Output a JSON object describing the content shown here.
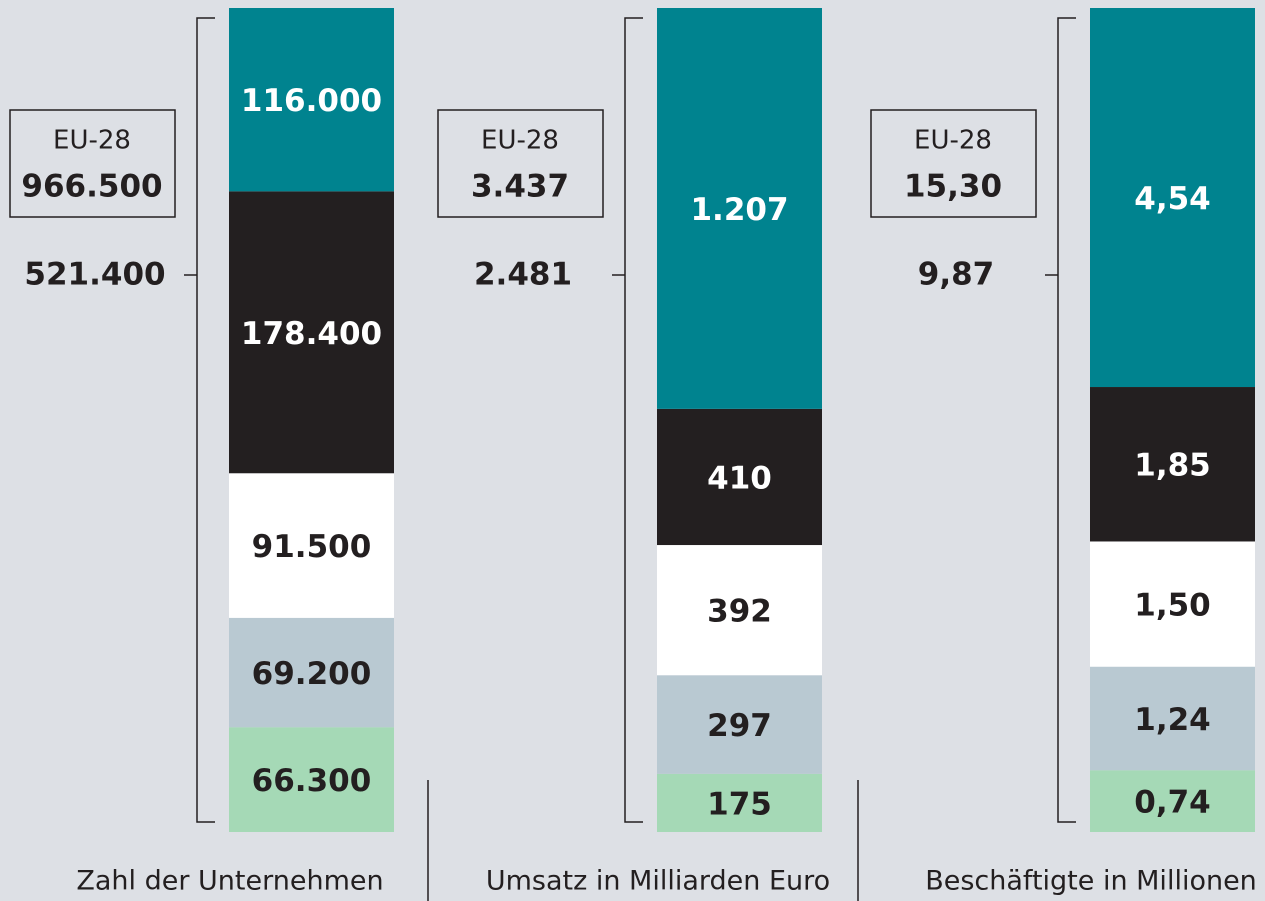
{
  "chart_data": [
    {
      "type": "bar",
      "xlabel": "Zahl der Unternehmen",
      "total": {
        "value": 521400,
        "label": "521.400"
      },
      "eu": {
        "label": "EU-28",
        "value": 966500,
        "value_label": "966.500"
      },
      "ylim": [
        0,
        521400
      ],
      "series": [
        {
          "color": "#a5d9b6",
          "values": [
            66300
          ],
          "value_labels": [
            "66.300"
          ]
        },
        {
          "color": "#b9c9d2",
          "values": [
            69200
          ],
          "value_labels": [
            "69.200"
          ]
        },
        {
          "color": "#ffffff",
          "values": [
            91500
          ],
          "value_labels": [
            "91.500"
          ]
        },
        {
          "color": "#231f20",
          "values": [
            178400
          ],
          "value_labels": [
            "178.400"
          ]
        },
        {
          "color": "#00838f",
          "values": [
            116000
          ],
          "value_labels": [
            "116.000"
          ]
        }
      ]
    },
    {
      "type": "bar",
      "xlabel": "Umsatz in Milliarden Euro",
      "total": {
        "value": 2481,
        "label": "2.481"
      },
      "eu": {
        "label": "EU-28",
        "value": 3437,
        "value_label": "3.437"
      },
      "ylim": [
        0,
        2481
      ],
      "series": [
        {
          "color": "#a5d9b6",
          "values": [
            175
          ]
        },
        {
          "color": "#b9c9d2",
          "values": [
            297
          ]
        },
        {
          "color": "#ffffff",
          "values": [
            392
          ]
        },
        {
          "color": "#231f20",
          "values": [
            410
          ]
        },
        {
          "color": "#00838f",
          "values": [
            1207
          ],
          "value_labels": [
            "1.207"
          ]
        }
      ]
    },
    {
      "type": "bar",
      "xlabel": "Beschäftigte in Millionen",
      "total": {
        "value": 9.87,
        "label": "9,87"
      },
      "eu": {
        "label": "EU-28",
        "value": 15.3,
        "value_label": "15,30"
      },
      "ylim": [
        0,
        9.87
      ],
      "series": [
        {
          "color": "#a5d9b6",
          "values": [
            0.74
          ],
          "value_labels": [
            "0,74"
          ]
        },
        {
          "color": "#b9c9d2",
          "values": [
            1.24
          ],
          "value_labels": [
            "1,24"
          ]
        },
        {
          "color": "#ffffff",
          "values": [
            1.5
          ],
          "value_labels": [
            "1,50"
          ]
        },
        {
          "color": "#231f20",
          "values": [
            1.85
          ],
          "value_labels": [
            "1,85"
          ]
        },
        {
          "color": "#00838f",
          "values": [
            4.54
          ],
          "value_labels": [
            "4,54"
          ]
        }
      ]
    }
  ]
}
